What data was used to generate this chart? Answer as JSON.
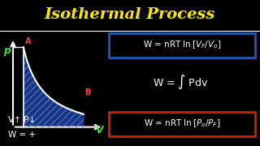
{
  "title": "Isothermal Process",
  "title_color": "#FFE800",
  "bg_color": "#000000",
  "eq1_box_color": "#1a5bb5",
  "eq3_box_color": "#cc2200",
  "label_p": "p",
  "label_v": "V",
  "label_a": "A",
  "label_b": "B",
  "bottom_text1": "V↑ P↓",
  "bottom_text2": "W = +",
  "curve_color": "#ffffff",
  "fill_color": "#1a3a8a",
  "hatch_color": "#4466cc",
  "axis_color": "#ffffff",
  "text_color": "#ffffff",
  "p_label_color": "#44dd44",
  "v_label_color": "#44dd44",
  "a_label_color": "#ff4444",
  "b_label_color": "#ff4444",
  "divider_color": "#ffffff"
}
